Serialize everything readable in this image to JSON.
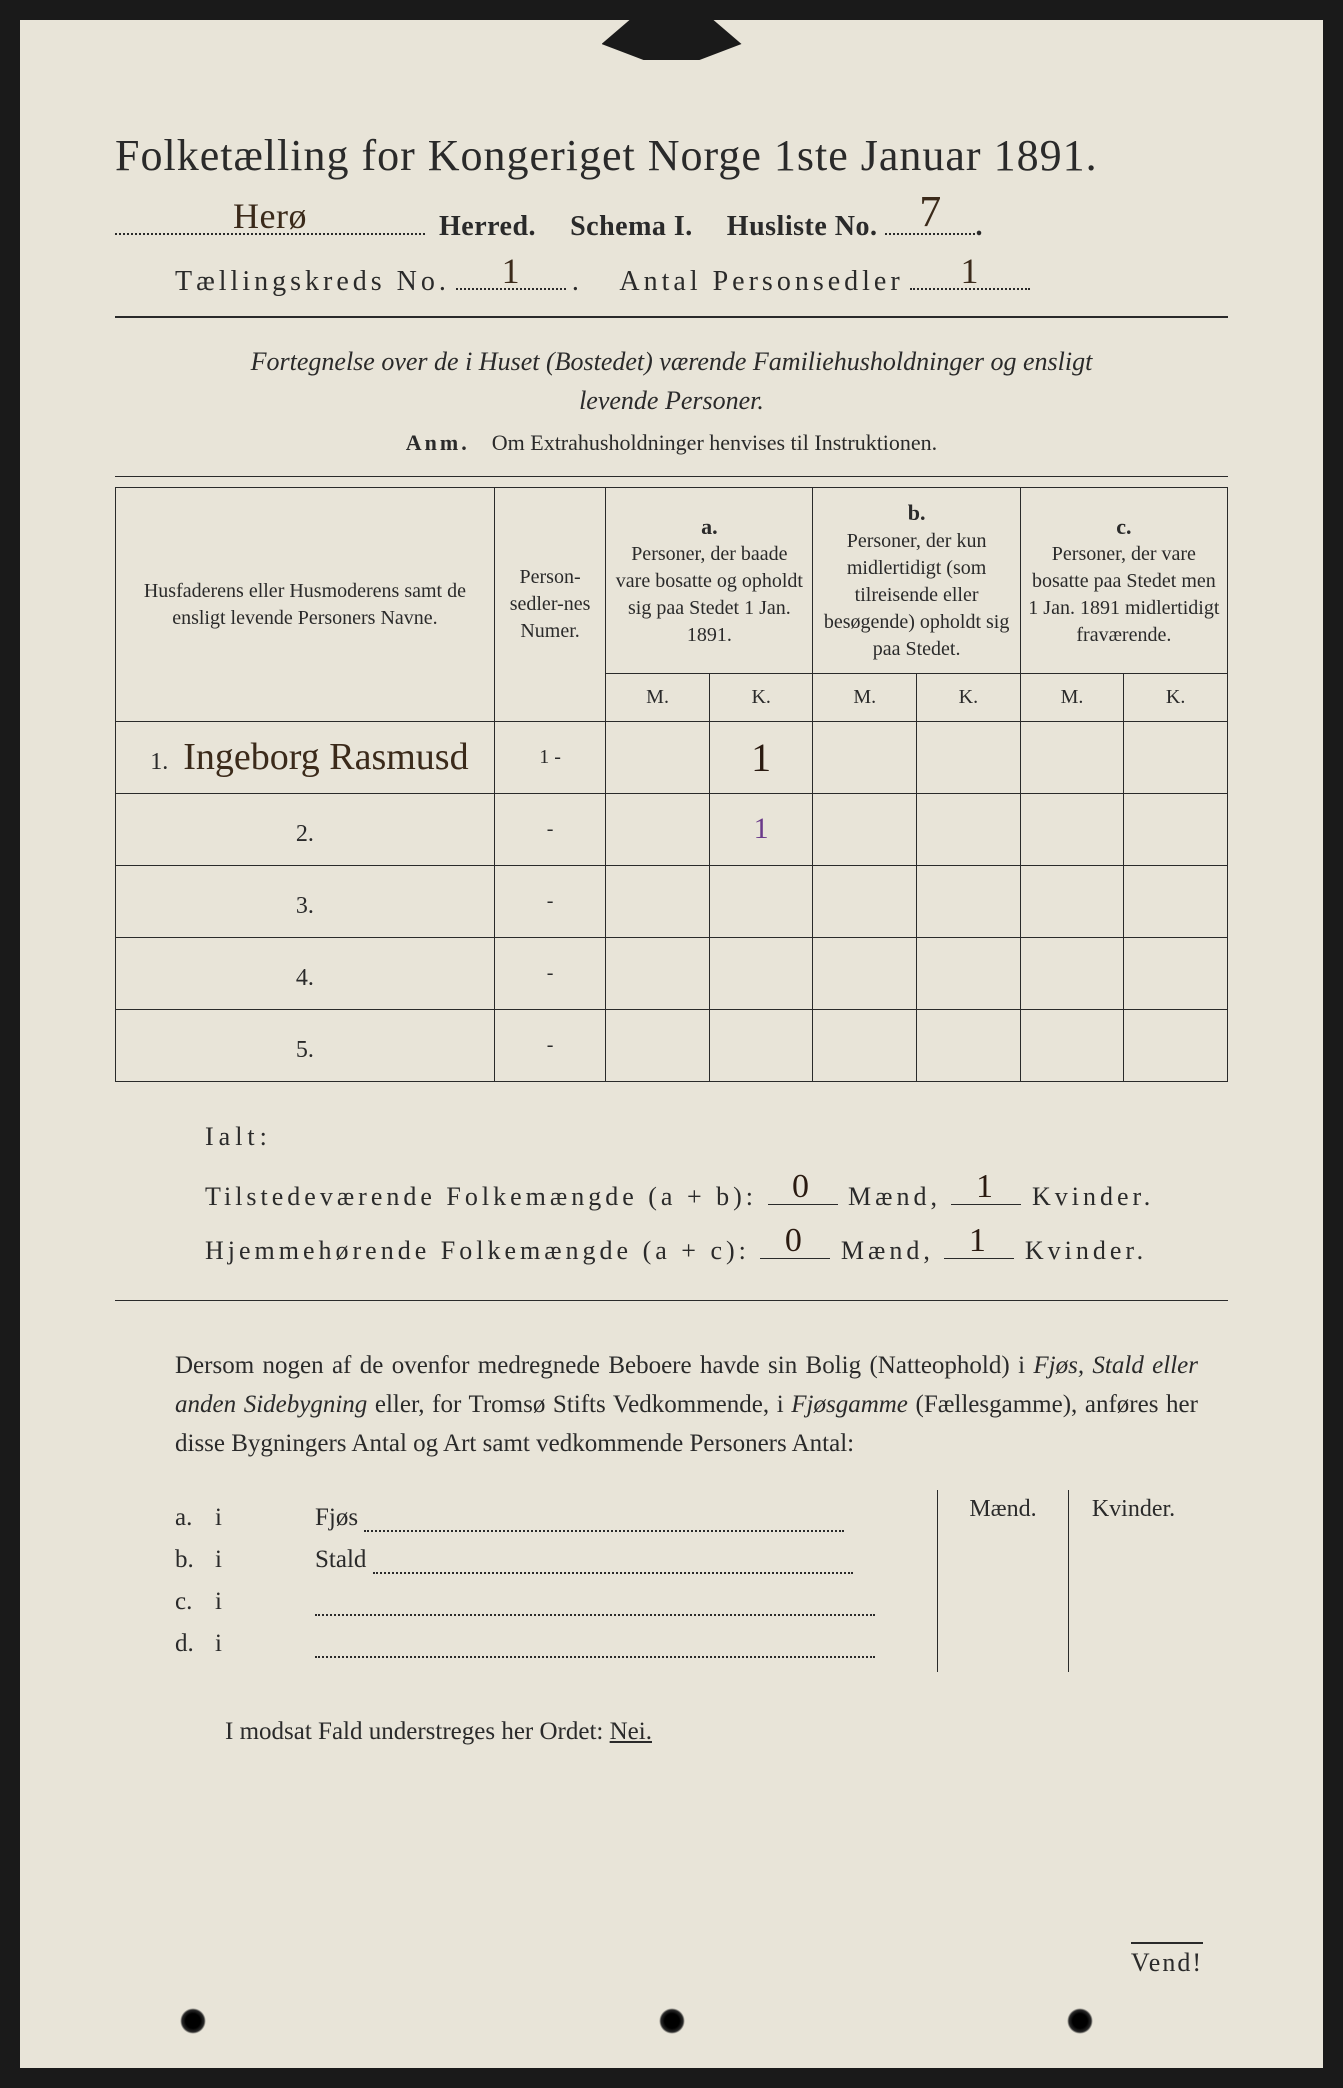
{
  "colors": {
    "page_bg": "#e8e4d8",
    "ink": "#2a2a2a",
    "hand_ink": "#3b2a1a",
    "hand_purple": "#6a3a8a",
    "outer_bg": "#1a1a1a"
  },
  "typography": {
    "title_fontsize": 44,
    "body_fontsize": 26,
    "table_fontsize": 20,
    "hand_fontsize": 36
  },
  "title": "Folketælling for Kongeriget Norge 1ste Januar 1891.",
  "header": {
    "herred_hand": "Herø",
    "herred_label": "Herred.",
    "schema_label": "Schema I.",
    "husliste_label": "Husliste No.",
    "husliste_hand": "7",
    "kreds_label": "Tællingskreds No.",
    "kreds_hand": "1",
    "antal_label": "Antal Personsedler",
    "antal_hand": "1"
  },
  "schema_note_line1": "Fortegnelse over de i Huset (Bostedet) værende Familiehusholdninger og ensligt",
  "schema_note_line2": "levende Personer.",
  "anm_label": "Anm.",
  "anm_text": "Om Extrahusholdninger henvises til Instruktionen.",
  "table": {
    "col_name": "Husfaderens eller Husmoderens samt de ensligt levende Personers Navne.",
    "col_numer": "Person-sedler-nes Numer.",
    "col_a_letter": "a.",
    "col_a": "Personer, der baade vare bosatte og opholdt sig paa Stedet 1 Jan. 1891.",
    "col_b_letter": "b.",
    "col_b": "Personer, der kun midlertidigt (som tilreisende eller besøgende) opholdt sig paa Stedet.",
    "col_c_letter": "c.",
    "col_c": "Personer, der vare bosatte paa Stedet men 1 Jan. 1891 midlertidigt fraværende.",
    "mk_m": "M.",
    "mk_k": "K.",
    "rows": [
      {
        "n": "1.",
        "name_hand": "Ingeborg Rasmusd",
        "numer": "1 -",
        "aM": "",
        "aK": "1",
        "bM": "",
        "bK": "",
        "cM": "",
        "cK": ""
      },
      {
        "n": "2.",
        "name_hand": "",
        "numer": "-",
        "aM": "",
        "aK": "1",
        "bM": "",
        "bK": "",
        "cM": "",
        "cK": "",
        "purple": true
      },
      {
        "n": "3.",
        "name_hand": "",
        "numer": "-",
        "aM": "",
        "aK": "",
        "bM": "",
        "bK": "",
        "cM": "",
        "cK": ""
      },
      {
        "n": "4.",
        "name_hand": "",
        "numer": "-",
        "aM": "",
        "aK": "",
        "bM": "",
        "bK": "",
        "cM": "",
        "cK": ""
      },
      {
        "n": "5.",
        "name_hand": "",
        "numer": "-",
        "aM": "",
        "aK": "",
        "bM": "",
        "bK": "",
        "cM": "",
        "cK": ""
      }
    ]
  },
  "totals": {
    "ialt": "Ialt:",
    "line1_label": "Tilstedeværende Folkemængde (a + b):",
    "line2_label": "Hjemmehørende Folkemængde (a + c):",
    "maend": "Mænd,",
    "kvinder": "Kvinder.",
    "v1_m": "0",
    "v1_k": "1",
    "v2_m": "0",
    "v2_k": "1"
  },
  "para": {
    "t1": "Dersom nogen af de ovenfor medregnede Beboere havde sin Bolig (Natteophold) i ",
    "it1": "Fjøs, Stald eller anden Sidebygning",
    "t2": " eller, for Tromsø Stifts Vedkommende, i ",
    "it2": "Fjøsgamme",
    "t3": " (Fællesgamme), anføres her disse Bygningers Antal og Art samt vedkommende Personers Antal:"
  },
  "sub": {
    "maend": "Mænd.",
    "kvinder": "Kvinder.",
    "rows": [
      {
        "k": "a.",
        "i": "i",
        "label": "Fjøs"
      },
      {
        "k": "b.",
        "i": "i",
        "label": "Stald"
      },
      {
        "k": "c.",
        "i": "i",
        "label": ""
      },
      {
        "k": "d.",
        "i": "i",
        "label": ""
      }
    ]
  },
  "nei_line_pre": "I modsat Fald understreges her Ordet: ",
  "nei": "Nei.",
  "vend": "Vend!"
}
